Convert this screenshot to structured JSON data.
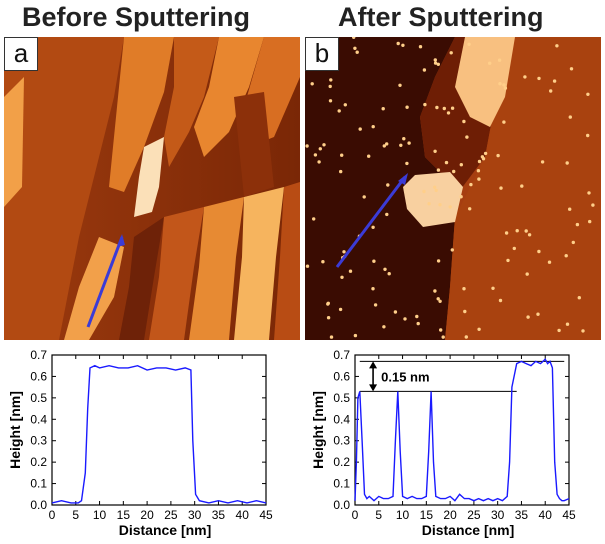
{
  "panels": {
    "a": {
      "letter": "a",
      "title": "Before Sputtering"
    },
    "b": {
      "letter": "b",
      "title": "After Sputtering"
    }
  },
  "colors": {
    "profile_line": "#1a1aff",
    "scan_arrow": "#3b3bd6",
    "stm_dark": "#5a1403",
    "stm_mid": "#a33c0c",
    "stm_bright": "#f4a64e"
  },
  "chart_data": [
    {
      "type": "line",
      "xlabel": "Distance [nm]",
      "ylabel": "Height [nm]",
      "xlim": [
        0,
        45
      ],
      "ylim": [
        0,
        0.7
      ],
      "x_ticks": [
        0,
        5,
        10,
        15,
        20,
        25,
        30,
        35,
        40,
        45
      ],
      "x_tick_labels": [
        "0",
        "5",
        "10",
        "15",
        "20",
        "25",
        "30",
        "35",
        "40",
        "45"
      ],
      "y_ticks": [
        0,
        0.1,
        0.2,
        0.3,
        0.4,
        0.5,
        0.6,
        0.7
      ],
      "y_tick_labels": [
        "0.0",
        "0.1",
        "0.2",
        "0.3",
        "0.4",
        "0.5",
        "0.6",
        "0.7"
      ],
      "series": [
        {
          "x": [
            0,
            2,
            4,
            5.5,
            6.2,
            7,
            7.5,
            8,
            9,
            10,
            12,
            14,
            16,
            18,
            20,
            22,
            24,
            26,
            28,
            29.2,
            29.6,
            30.2,
            31,
            33,
            35,
            37,
            39,
            41,
            43,
            45
          ],
          "y": [
            0.01,
            0.02,
            0.01,
            0.01,
            0.02,
            0.15,
            0.45,
            0.64,
            0.65,
            0.64,
            0.65,
            0.64,
            0.64,
            0.65,
            0.63,
            0.64,
            0.64,
            0.63,
            0.64,
            0.63,
            0.3,
            0.05,
            0.02,
            0.01,
            0.02,
            0.01,
            0.02,
            0.01,
            0.02,
            0.01
          ]
        }
      ]
    },
    {
      "type": "line",
      "xlabel": "Distance [nm]",
      "ylabel": "Height [nm]",
      "xlim": [
        0,
        45
      ],
      "ylim": [
        0,
        0.7
      ],
      "x_ticks": [
        0,
        5,
        10,
        15,
        20,
        25,
        30,
        35,
        40,
        45
      ],
      "x_tick_labels": [
        "0",
        "5",
        "10",
        "15",
        "20",
        "25",
        "30",
        "35",
        "40",
        "45"
      ],
      "y_ticks": [
        0,
        0.1,
        0.2,
        0.3,
        0.4,
        0.5,
        0.6,
        0.7
      ],
      "y_tick_labels": [
        "0.0",
        "0.1",
        "0.2",
        "0.3",
        "0.4",
        "0.5",
        "0.6",
        "0.7"
      ],
      "annotation": "0.15 nm",
      "reference_levels": [
        0.53,
        0.67
      ],
      "series": [
        {
          "x": [
            0,
            0.3,
            0.6,
            1.0,
            1.5,
            2.0,
            2.5,
            3,
            4,
            5,
            6,
            7,
            8,
            8.5,
            9,
            9.5,
            10,
            11,
            12,
            13,
            14,
            15,
            15.5,
            16,
            16.5,
            17,
            18,
            19,
            20,
            21,
            22,
            23,
            24,
            25,
            26,
            27,
            28,
            29,
            30,
            31,
            32,
            32.5,
            33,
            34,
            35,
            36,
            37,
            38,
            39,
            40,
            40.5,
            41,
            41.5,
            42,
            42.5,
            43,
            43.5,
            44,
            45
          ],
          "y": [
            0.02,
            0.2,
            0.5,
            0.53,
            0.3,
            0.05,
            0.03,
            0.04,
            0.02,
            0.04,
            0.03,
            0.03,
            0.04,
            0.3,
            0.53,
            0.25,
            0.04,
            0.03,
            0.04,
            0.03,
            0.03,
            0.04,
            0.25,
            0.53,
            0.2,
            0.04,
            0.03,
            0.03,
            0.04,
            0.02,
            0.05,
            0.03,
            0.03,
            0.02,
            0.03,
            0.02,
            0.03,
            0.02,
            0.03,
            0.02,
            0.04,
            0.2,
            0.55,
            0.66,
            0.67,
            0.66,
            0.65,
            0.67,
            0.66,
            0.68,
            0.66,
            0.67,
            0.64,
            0.2,
            0.05,
            0.03,
            0.02,
            0.02,
            0.03
          ]
        }
      ]
    }
  ]
}
